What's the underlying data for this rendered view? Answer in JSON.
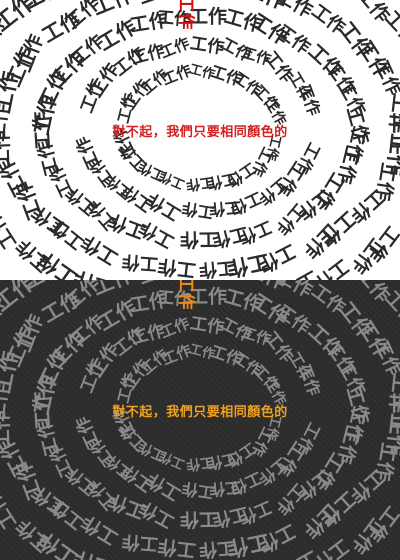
{
  "puzzle": {
    "common_glyph": "工作",
    "odd_glyph": "工作",
    "odd_note": "one glyph drawn in the highlight color",
    "caption": "對不起，我們只要相同顏色的",
    "highlight_light": "#cc1111",
    "highlight_dark": "#e88a1a",
    "glyph_light": "#2a2a2a",
    "glyph_dark": "#8a8a8a"
  }
}
